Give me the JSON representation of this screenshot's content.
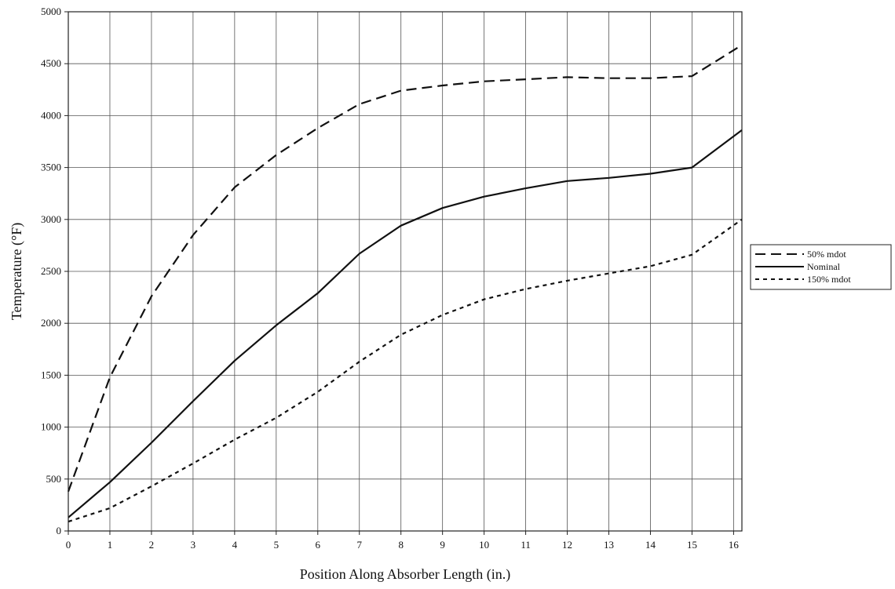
{
  "chart_data": {
    "type": "line",
    "title": "",
    "xlabel": "Position Along Absorber Length (in.)",
    "ylabel": "Temperature (°F)",
    "xlim": [
      0,
      16.2
    ],
    "ylim": [
      0,
      5000
    ],
    "x_ticks": [
      0,
      1,
      2,
      3,
      4,
      5,
      6,
      7,
      8,
      9,
      10,
      11,
      12,
      13,
      14,
      15,
      16
    ],
    "y_ticks": [
      0,
      500,
      1000,
      1500,
      2000,
      2500,
      3000,
      3500,
      4000,
      4500,
      5000
    ],
    "grid": true,
    "legend_position": "right",
    "series": [
      {
        "name": "50% mdot",
        "line_style": "dashed",
        "color": "#111111",
        "x": [
          0,
          1,
          2,
          3,
          4,
          5,
          6,
          7,
          8,
          9,
          10,
          11,
          12,
          13,
          14,
          15,
          16.2
        ],
        "y": [
          380,
          1480,
          2260,
          2850,
          3310,
          3620,
          3880,
          4110,
          4240,
          4290,
          4330,
          4350,
          4370,
          4360,
          4360,
          4380,
          4680
        ]
      },
      {
        "name": "Nominal",
        "line_style": "solid",
        "color": "#111111",
        "x": [
          0,
          1,
          2,
          3,
          4,
          5,
          6,
          7,
          8,
          9,
          10,
          11,
          12,
          13,
          14,
          15,
          16.2
        ],
        "y": [
          130,
          470,
          850,
          1250,
          1640,
          1980,
          2290,
          2670,
          2940,
          3110,
          3220,
          3300,
          3370,
          3400,
          3440,
          3500,
          3860
        ]
      },
      {
        "name": "150% mdot",
        "line_style": "dotted",
        "color": "#111111",
        "x": [
          0,
          1,
          2,
          3,
          4,
          5,
          6,
          7,
          8,
          9,
          10,
          11,
          12,
          13,
          14,
          15,
          16.2
        ],
        "y": [
          90,
          220,
          430,
          650,
          880,
          1090,
          1340,
          1630,
          1890,
          2080,
          2230,
          2330,
          2410,
          2480,
          2550,
          2660,
          3000
        ]
      }
    ]
  }
}
